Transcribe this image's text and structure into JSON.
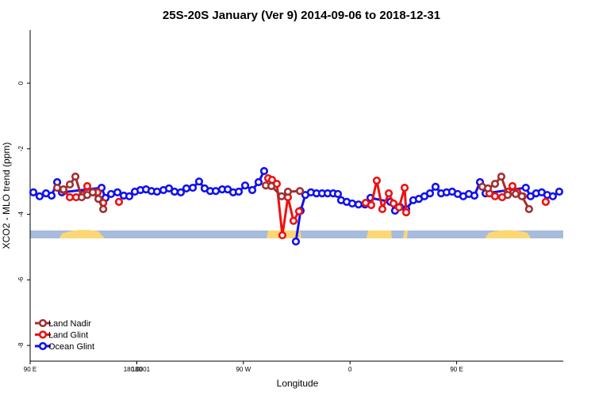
{
  "chart_data": {
    "type": "line",
    "title": "25S-20S January (Ver 9)   2014-09-06 to 2018-12-31",
    "x_label": "Longitude",
    "y_label": "XCO2 - MLO trend (ppm)",
    "xlim": [
      90,
      540
    ],
    "xticks": [
      {
        "value": 90,
        "label": "90 E"
      },
      180,
      {
        "value": 270,
        "label": "90 W"
      },
      {
        "value": 360,
        "label": "0"
      },
      {
        "value": 450,
        "label": "90 E"
      },
      180.0001
    ],
    "ylim": [
      -8.48,
      1.62
    ],
    "yticks": [
      0,
      -2,
      -4,
      -6,
      -8
    ],
    "legend": "bottom-left",
    "series": [
      {
        "name": "Land Nadir",
        "color": "#a03030",
        "x": [
          112.8,
          118.1,
          123.5,
          128.2,
          133.5,
          138.2,
          142.9,
          147.6,
          151.7,
          null,
          288.9,
          293.6,
          302.3,
          307.6,
          317.7,
          null,
          471.7,
          476.4,
          482.4,
          487.7,
          493.1,
          499.8,
          505.1,
          511.1
        ],
        "values": [
          -3.19,
          -3.24,
          -3.09,
          -2.85,
          -3.48,
          -3.41,
          -3.33,
          -3.53,
          -3.84,
          null,
          -3.12,
          -3.14,
          -3.45,
          -3.31,
          -3.29,
          null,
          -3.16,
          -3.21,
          -3.07,
          -2.85,
          -3.41,
          -3.38,
          -3.45,
          -3.84
        ]
      },
      {
        "name": "Land Glint",
        "color": "#ee1111",
        "x": [
          118.1,
          123.5,
          128.8,
          134.2,
          138.2,
          142.9,
          146.9,
          151.7,
          null,
          165.0,
          null,
          290.9,
          294.2,
          298.2,
          302.9,
          307.6,
          312.3,
          317.0,
          null,
          373.2,
          377.9,
          382.6,
          387.3,
          392.7,
          396.7,
          401.4,
          406.1,
          407.4,
          null,
          477.7,
          482.4,
          488.4,
          493.1,
          497.1,
          501.2,
          505.8,
          null,
          525.2
        ],
        "values": [
          -3.26,
          -3.48,
          -3.48,
          -3.41,
          -3.14,
          -3.33,
          -3.33,
          -3.65,
          null,
          -3.62,
          null,
          -2.9,
          -2.95,
          -3.07,
          -4.64,
          -3.48,
          -4.2,
          -3.91,
          null,
          -3.65,
          -3.72,
          -2.97,
          -3.84,
          -3.36,
          -3.67,
          -3.79,
          -3.19,
          -3.94,
          null,
          -3.36,
          -3.45,
          -3.48,
          -3.31,
          -3.14,
          -3.33,
          -3.45,
          null,
          -3.62
        ]
      },
      {
        "name": "Ocean Glint",
        "color": "#1111ee",
        "x": [
          92.7,
          98.0,
          103.4,
          108.1,
          112.8,
          116.8,
          150.3,
          153.6,
          158.3,
          163.7,
          169.0,
          173.7,
          178.4,
          183.1,
          187.8,
          192.4,
          197.1,
          202.5,
          207.2,
          211.9,
          217.2,
          221.9,
          227.3,
          232.6,
          237.3,
          242.0,
          246.7,
          252.1,
          256.8,
          261.4,
          266.1,
          271.5,
          277.5,
          282.8,
          287.5,
          null,
          314.3,
          318.3,
          322.3,
          327.0,
          331.7,
          336.4,
          341.1,
          345.8,
          349.8,
          352.5,
          357.2,
          361.9,
          367.2,
          372.6,
          377.3,
          394.0,
          398.0,
          402.0,
          407.4,
          413.4,
          418.1,
          422.8,
          427.5,
          432.2,
          436.9,
          441.5,
          446.2,
          450.9,
          455.6,
          460.3,
          465.0,
          469.7,
          474.4,
          508.4,
          512.4,
          517.1,
          521.8,
          526.5,
          531.2,
          536.6
        ],
        "values": [
          -3.33,
          -3.45,
          -3.36,
          -3.43,
          -3.02,
          -3.33,
          -3.19,
          -3.5,
          -3.38,
          -3.33,
          -3.43,
          -3.45,
          -3.31,
          -3.26,
          -3.24,
          -3.29,
          -3.31,
          -3.26,
          -3.21,
          -3.31,
          -3.33,
          -3.21,
          -3.19,
          -3.0,
          -3.21,
          -3.29,
          -3.29,
          -3.24,
          -3.24,
          -3.33,
          -3.31,
          -3.12,
          -3.26,
          -3.02,
          -2.68,
          null,
          -4.83,
          -3.89,
          -3.41,
          -3.33,
          -3.36,
          -3.36,
          -3.36,
          -3.36,
          -3.38,
          -3.57,
          -3.62,
          -3.67,
          -3.7,
          -3.7,
          -3.5,
          -3.62,
          -3.89,
          -3.77,
          -3.84,
          -3.57,
          -3.53,
          -3.45,
          -3.36,
          -3.16,
          -3.36,
          -3.33,
          -3.31,
          -3.38,
          -3.45,
          -3.38,
          -3.43,
          -3.02,
          -3.36,
          -3.19,
          -3.45,
          -3.36,
          -3.33,
          -3.41,
          -3.45,
          -3.31
        ]
      }
    ]
  }
}
